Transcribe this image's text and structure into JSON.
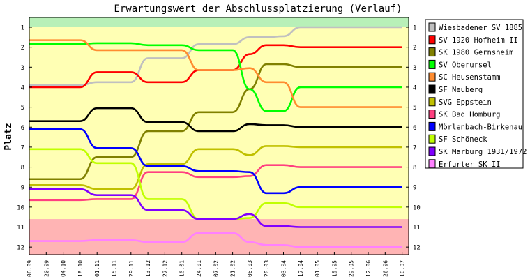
{
  "chart_data": {
    "type": "line",
    "title": "Erwartungswert der Abschlussplatzierung (Verlauf)",
    "ylabel": "Platz",
    "xlabel": "",
    "ylim": [
      1,
      12
    ],
    "y_inverted": true,
    "y_ticks": [
      "1",
      "2",
      "3",
      "4",
      "5",
      "6",
      "7",
      "8",
      "9",
      "10",
      "11",
      "12"
    ],
    "x": [
      "06.09",
      "20.09",
      "04.10",
      "18.10",
      "01.11",
      "15.11",
      "29.11",
      "13.12",
      "27.12",
      "10.01",
      "24.01",
      "07.02",
      "21.02",
      "06.03",
      "20.03",
      "03.04",
      "17.04",
      "01.05",
      "15.05",
      "29.05",
      "12.06",
      "26.06",
      "10.07"
    ],
    "bands": [
      {
        "from": 0.5,
        "to": 1.0,
        "color": "#b8f0b8"
      },
      {
        "from": 1.0,
        "to": 10.6,
        "color": "#ffffb4"
      },
      {
        "from": 10.6,
        "to": 12.5,
        "color": "#ffb4b4"
      }
    ],
    "series": [
      {
        "name": "Wiesbadener SV 1885",
        "color": "#c0c0c0",
        "values": [
          3.9,
          3.9,
          3.9,
          3.9,
          3.75,
          3.75,
          3.75,
          2.55,
          2.55,
          2.55,
          1.85,
          1.85,
          1.85,
          1.5,
          1.5,
          1.45,
          1.0,
          1.0,
          1.0,
          1.0,
          1.0,
          1.0,
          1.0
        ]
      },
      {
        "name": "SV 1920 Hofheim II",
        "color": "#ff0000",
        "values": [
          4.0,
          4.0,
          4.0,
          4.0,
          3.25,
          3.25,
          3.25,
          3.75,
          3.75,
          3.75,
          3.15,
          3.15,
          3.15,
          2.35,
          1.9,
          1.9,
          2.0,
          2.0,
          2.0,
          2.0,
          2.0,
          2.0,
          2.0
        ]
      },
      {
        "name": "SK 1980 Gernsheim",
        "color": "#808000",
        "values": [
          8.6,
          8.6,
          8.6,
          8.6,
          7.5,
          7.5,
          7.5,
          6.2,
          6.2,
          6.2,
          5.25,
          5.25,
          5.25,
          4.1,
          2.85,
          2.85,
          3.0,
          3.0,
          3.0,
          3.0,
          3.0,
          3.0,
          3.0
        ]
      },
      {
        "name": "SV Oberursel",
        "color": "#00ff00",
        "values": [
          1.85,
          1.85,
          1.85,
          1.85,
          1.8,
          1.8,
          1.8,
          1.9,
          1.9,
          1.9,
          2.15,
          2.15,
          2.15,
          4.1,
          5.2,
          5.2,
          4.0,
          4.0,
          4.0,
          4.0,
          4.0,
          4.0,
          4.0
        ]
      },
      {
        "name": "SC Heusenstamm",
        "color": "#ff8c30",
        "values": [
          1.65,
          1.65,
          1.65,
          1.65,
          2.15,
          2.15,
          2.15,
          2.15,
          2.15,
          2.15,
          3.15,
          3.15,
          3.15,
          3.05,
          3.75,
          3.75,
          5.0,
          5.0,
          5.0,
          5.0,
          5.0,
          5.0,
          5.0
        ]
      },
      {
        "name": "SF Neuberg",
        "color": "#000000",
        "values": [
          5.7,
          5.7,
          5.7,
          5.7,
          5.05,
          5.05,
          5.05,
          5.75,
          5.75,
          5.75,
          6.2,
          6.2,
          6.2,
          5.85,
          5.9,
          5.9,
          6.0,
          6.0,
          6.0,
          6.0,
          6.0,
          6.0,
          6.0
        ]
      },
      {
        "name": "SVG Eppstein",
        "color": "#c0c000",
        "values": [
          8.9,
          8.9,
          8.9,
          8.9,
          9.1,
          9.1,
          9.1,
          7.85,
          7.85,
          7.85,
          7.1,
          7.1,
          7.1,
          7.4,
          6.95,
          6.95,
          7.0,
          7.0,
          7.0,
          7.0,
          7.0,
          7.0,
          7.0
        ]
      },
      {
        "name": "SK Bad Homburg",
        "color": "#ff4080",
        "values": [
          9.65,
          9.65,
          9.65,
          9.65,
          9.6,
          9.6,
          9.6,
          8.25,
          8.25,
          8.25,
          8.5,
          8.5,
          8.5,
          8.45,
          7.9,
          7.9,
          8.0,
          8.0,
          8.0,
          8.0,
          8.0,
          8.0,
          8.0
        ]
      },
      {
        "name": "Mörlenbach-Birkenau",
        "color": "#0000ff",
        "values": [
          6.1,
          6.1,
          6.1,
          6.1,
          7.05,
          7.05,
          7.05,
          7.95,
          7.95,
          7.95,
          8.2,
          8.2,
          8.2,
          8.25,
          9.3,
          9.3,
          9.0,
          9.0,
          9.0,
          9.0,
          9.0,
          9.0,
          9.0
        ]
      },
      {
        "name": "SF Schöneck",
        "color": "#c0ff00",
        "values": [
          7.1,
          7.1,
          7.1,
          7.1,
          7.8,
          7.8,
          7.8,
          9.6,
          9.6,
          9.6,
          10.6,
          10.6,
          10.6,
          10.55,
          9.8,
          9.8,
          10.0,
          10.0,
          10.0,
          10.0,
          10.0,
          10.0,
          10.0
        ]
      },
      {
        "name": "SK Marburg 1931/1972",
        "color": "#8000ff",
        "values": [
          9.1,
          9.1,
          9.1,
          9.1,
          9.4,
          9.4,
          9.4,
          10.15,
          10.15,
          10.15,
          10.6,
          10.6,
          10.6,
          10.35,
          10.95,
          10.95,
          11.0,
          11.0,
          11.0,
          11.0,
          11.0,
          11.0,
          11.0
        ]
      },
      {
        "name": "Erfurter SK II",
        "color": "#ff80ff",
        "values": [
          11.7,
          11.7,
          11.7,
          11.7,
          11.65,
          11.65,
          11.65,
          11.75,
          11.75,
          11.75,
          11.3,
          11.3,
          11.3,
          11.75,
          11.9,
          11.9,
          12.0,
          12.0,
          12.0,
          12.0,
          12.0,
          12.0,
          12.0
        ]
      }
    ],
    "legend_position": "right",
    "grid": false
  }
}
